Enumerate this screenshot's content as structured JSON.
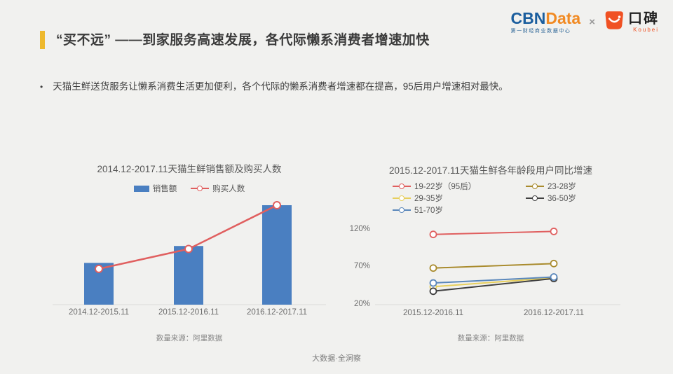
{
  "slide": {
    "title": "“买不远” ——到家服务高速发展，各代际懒系消费者增速加快",
    "bullet_marker": "•",
    "bullet": "天猫生鲜送货服务让懒系消费生活更加便利，各个代际的懒系消费者增速都在提高，95后用户增速相对最快。",
    "footer": "大数据·全洞察",
    "accent_color": "#eeb92e",
    "background_color": "#f1f1ef"
  },
  "logos": {
    "cbn": "CBN",
    "data": "Data",
    "cbn_subtitle": "第一财经商业数据中心",
    "separator": "×",
    "koubei_cn": "口碑",
    "koubei_en": "Koubei",
    "cbn_blue": "#1b5e9e",
    "data_orange": "#f18a23",
    "koubei_orange": "#f05123"
  },
  "left_chart": {
    "title": "2014.12-2017.11天猫生鲜销售额及购买人数",
    "source": "数量来源：阿里数据"
  },
  "right_chart": {
    "title": "2015.12-2017.11天猫生鲜各年龄段用户同比增速",
    "source": "数量来源：阿里数据"
  },
  "chart_data": [
    {
      "type": "bar",
      "title": "2014.12-2017.11天猫生鲜销售额及购买人数",
      "categories": [
        "2014.12-2015.11",
        "2015.12-2016.11",
        "2016.12-2017.11"
      ],
      "series": [
        {
          "name": "销售额",
          "type": "bar",
          "color": "#4a7fc1",
          "values_relative": [
            0.42,
            0.59,
            1.0
          ]
        },
        {
          "name": "购买人数",
          "type": "line",
          "color": "#e05f5f",
          "marker": "open-circle",
          "values_relative": [
            0.36,
            0.56,
            1.0
          ]
        }
      ],
      "ylabel": "",
      "y_axis_labels_shown": false,
      "note": "no y-axis tick values shown; values are heights relative to the tallest bar",
      "source": "数量来源：阿里数据",
      "legend_position": "top",
      "grid": false
    },
    {
      "type": "line",
      "title": "2015.12-2017.11天猫生鲜各年龄段用户同比增速",
      "categories": [
        "2015.12-2016.11",
        "2016.12-2017.11"
      ],
      "yticks": [
        "120%",
        "70%",
        "20%"
      ],
      "ytick_values": [
        120,
        70,
        20
      ],
      "ylim": [
        20,
        130
      ],
      "unit": "%",
      "series": [
        {
          "name": "19-22岁（95后）",
          "color": "#e05f5f",
          "values": [
            114,
            118
          ]
        },
        {
          "name": "23-28岁",
          "color": "#a98b2d",
          "values": [
            69,
            75
          ]
        },
        {
          "name": "29-35岁",
          "color": "#e7cf5c",
          "values": [
            44,
            56
          ]
        },
        {
          "name": "36-50岁",
          "color": "#404040",
          "values": [
            38,
            55
          ]
        },
        {
          "name": "51-70岁",
          "color": "#5a87bb",
          "values": [
            49,
            57
          ]
        }
      ],
      "legend_position": "top",
      "grid": false,
      "source": "数量来源：阿里数据"
    }
  ]
}
